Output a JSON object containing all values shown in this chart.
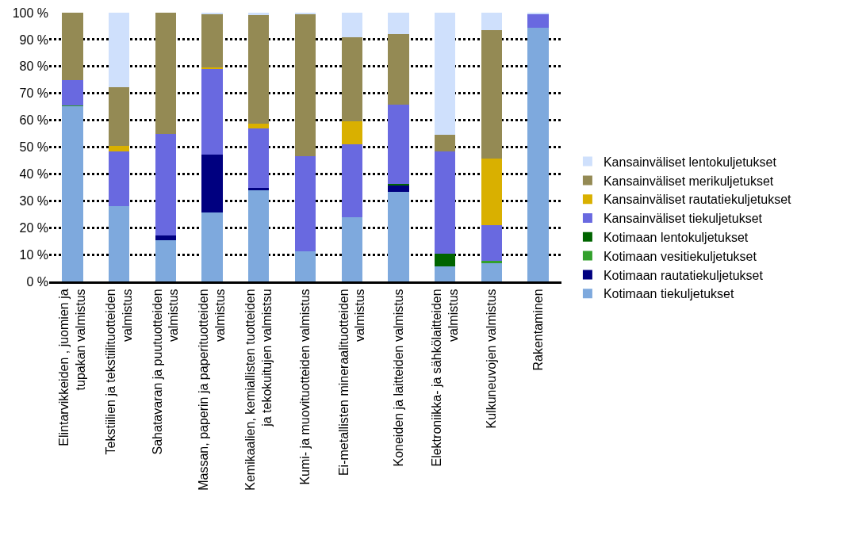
{
  "chart_data": {
    "type": "bar",
    "stacked": true,
    "categories": [
      "Elintarvikkeiden , juomien ja tupakan valmistus",
      "Tekstiilien ja tekstiilituotteiden valmistus",
      "Sahatavaran ja puutuotteiden valmistus",
      "Massan, paperin ja paperituotteiden valmistus",
      "Kemikaalien, kemiallisten tuotteiden ja tekokuitujen valmistsu",
      "Kumi- ja muovituotteiden valmistus",
      "Ei-metallisten mineraalituotteiden valmistus",
      "Koneiden ja laitteiden valmistus",
      "Elektroniikka- ja sähkölaitteiden valmistus",
      "Kulkuneuvojen valmistus",
      "Rakentaminen"
    ],
    "series": [
      {
        "name": "Kotimaan tiekuljetukset",
        "color": "#7ea9dd",
        "values": [
          65.2,
          28.1,
          15.3,
          25.7,
          34.0,
          11.2,
          23.9,
          33.4,
          5.6,
          6.8,
          94.5
        ]
      },
      {
        "name": "Kotimaan rautatiekuljetukset",
        "color": "#000080",
        "values": [
          0,
          0,
          1.7,
          21.4,
          0.8,
          0,
          0,
          2.4,
          0,
          0,
          0
        ]
      },
      {
        "name": "Kotimaan vesitiekuljetukset",
        "color": "#33a02c",
        "values": [
          0.3,
          0,
          0,
          0,
          0,
          0,
          0,
          0,
          0,
          0.8,
          0
        ]
      },
      {
        "name": "Kotimaan lentokuljetukset",
        "color": "#006400",
        "values": [
          0,
          0,
          0,
          0,
          0,
          0,
          0,
          0.6,
          4.6,
          0,
          0
        ]
      },
      {
        "name": "Kansainväliset tiekuljetukset",
        "color": "#6969e0",
        "values": [
          9.5,
          20.4,
          38.0,
          32.0,
          22.1,
          35.5,
          27.1,
          29.5,
          38.3,
          13.4,
          5.1
        ]
      },
      {
        "name": "Kansainväliset rautatiekuljetukset",
        "color": "#d9b000",
        "values": [
          0,
          2.0,
          0,
          0.6,
          1.7,
          0,
          8.7,
          0,
          0,
          24.8,
          0
        ]
      },
      {
        "name": "Kansainväliset merikuljetukset",
        "color": "#948a54",
        "values": [
          25.0,
          21.7,
          45.0,
          19.8,
          40.6,
          52.9,
          31.3,
          26.1,
          6.2,
          47.8,
          0
        ]
      },
      {
        "name": "Kansainväliset lentokuljetukset",
        "color": "#cfe0fc",
        "values": [
          0,
          27.8,
          0,
          0.5,
          0.8,
          0.4,
          9.0,
          8.0,
          45.3,
          6.4,
          0.4
        ]
      }
    ],
    "ylim": [
      0,
      100
    ],
    "yticks": [
      {
        "value": 0,
        "label": "0 %"
      },
      {
        "value": 10,
        "label": "10 %"
      },
      {
        "value": 20,
        "label": "20 %"
      },
      {
        "value": 30,
        "label": "30 %"
      },
      {
        "value": 40,
        "label": "40 %"
      },
      {
        "value": 50,
        "label": "50 %"
      },
      {
        "value": 60,
        "label": "60 %"
      },
      {
        "value": 70,
        "label": "70 %"
      },
      {
        "value": 80,
        "label": "80 %"
      },
      {
        "value": 90,
        "label": "90 %"
      },
      {
        "value": 100,
        "label": "100 %"
      }
    ],
    "grid": "y",
    "legend": "right"
  }
}
